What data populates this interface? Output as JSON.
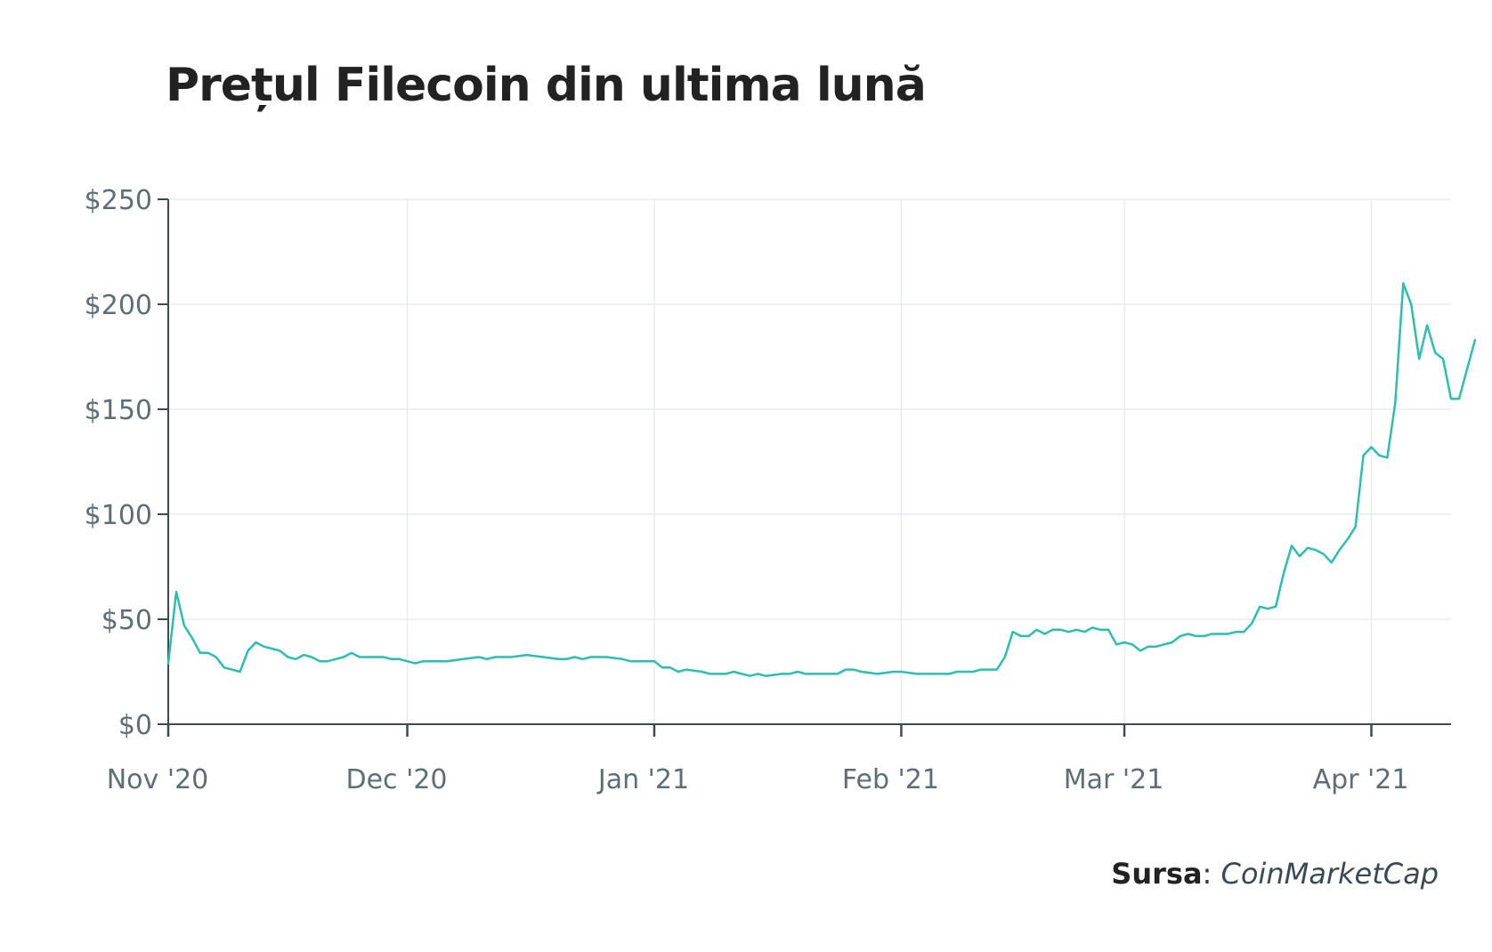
{
  "title": "Prețul Filecoin din ultima lună",
  "source": {
    "label": "Sursa",
    "separator": ": ",
    "name": "CoinMarketCap"
  },
  "colors": {
    "line": "#2bbfb0",
    "axis": "#3c4a52",
    "grid": "#e8ecef",
    "text": "#5e6e78"
  },
  "chart_data": {
    "type": "line",
    "title": "Prețul Filecoin din ultima lună",
    "xlabel": "",
    "ylabel": "",
    "x_tick_labels": [
      "Nov '20",
      "Dec '20",
      "Jan '21",
      "Feb '21",
      "Mar '21",
      "Apr '21"
    ],
    "x_tick_dates": [
      "2020-11-01",
      "2020-12-01",
      "2021-01-01",
      "2021-02-01",
      "2021-03-01",
      "2021-04-01"
    ],
    "xlim": [
      "2020-11-01",
      "2021-04-11"
    ],
    "y_ticks": [
      0,
      50,
      100,
      150,
      200,
      250
    ],
    "y_tick_labels": [
      "$0",
      "$50",
      "$100",
      "$150",
      "$200",
      "$250"
    ],
    "ylim": [
      0,
      250
    ],
    "grid": true,
    "legend": "none",
    "series": [
      {
        "name": "",
        "points": [
          [
            "2020-11-01",
            29
          ],
          [
            "2020-11-02",
            63
          ],
          [
            "2020-11-03",
            47
          ],
          [
            "2020-11-04",
            41
          ],
          [
            "2020-11-05",
            34
          ],
          [
            "2020-11-06",
            34
          ],
          [
            "2020-11-07",
            32
          ],
          [
            "2020-11-08",
            27
          ],
          [
            "2020-11-09",
            26
          ],
          [
            "2020-11-10",
            25
          ],
          [
            "2020-11-11",
            35
          ],
          [
            "2020-11-12",
            39
          ],
          [
            "2020-11-13",
            37
          ],
          [
            "2020-11-14",
            36
          ],
          [
            "2020-11-15",
            35
          ],
          [
            "2020-11-16",
            32
          ],
          [
            "2020-11-17",
            31
          ],
          [
            "2020-11-18",
            33
          ],
          [
            "2020-11-19",
            32
          ],
          [
            "2020-11-20",
            30
          ],
          [
            "2020-11-21",
            30
          ],
          [
            "2020-11-22",
            31
          ],
          [
            "2020-11-23",
            32
          ],
          [
            "2020-11-24",
            34
          ],
          [
            "2020-11-25",
            32
          ],
          [
            "2020-11-26",
            32
          ],
          [
            "2020-11-27",
            32
          ],
          [
            "2020-11-28",
            32
          ],
          [
            "2020-11-29",
            31
          ],
          [
            "2020-11-30",
            31
          ],
          [
            "2020-12-01",
            30
          ],
          [
            "2020-12-02",
            29
          ],
          [
            "2020-12-03",
            30
          ],
          [
            "2020-12-04",
            30
          ],
          [
            "2020-12-06",
            30
          ],
          [
            "2020-12-08",
            31
          ],
          [
            "2020-12-10",
            32
          ],
          [
            "2020-12-11",
            31
          ],
          [
            "2020-12-12",
            32
          ],
          [
            "2020-12-14",
            32
          ],
          [
            "2020-12-16",
            33
          ],
          [
            "2020-12-18",
            32
          ],
          [
            "2020-12-20",
            31
          ],
          [
            "2020-12-21",
            31
          ],
          [
            "2020-12-22",
            32
          ],
          [
            "2020-12-23",
            31
          ],
          [
            "2020-12-24",
            32
          ],
          [
            "2020-12-26",
            32
          ],
          [
            "2020-12-28",
            31
          ],
          [
            "2020-12-29",
            30
          ],
          [
            "2020-12-31",
            30
          ],
          [
            "2021-01-01",
            30
          ],
          [
            "2021-01-02",
            27
          ],
          [
            "2021-01-03",
            27
          ],
          [
            "2021-01-04",
            25
          ],
          [
            "2021-01-05",
            26
          ],
          [
            "2021-01-07",
            25
          ],
          [
            "2021-01-08",
            24
          ],
          [
            "2021-01-10",
            24
          ],
          [
            "2021-01-11",
            25
          ],
          [
            "2021-01-12",
            24
          ],
          [
            "2021-01-13",
            23
          ],
          [
            "2021-01-14",
            24
          ],
          [
            "2021-01-15",
            23
          ],
          [
            "2021-01-17",
            24
          ],
          [
            "2021-01-18",
            24
          ],
          [
            "2021-01-19",
            25
          ],
          [
            "2021-01-20",
            24
          ],
          [
            "2021-01-22",
            24
          ],
          [
            "2021-01-24",
            24
          ],
          [
            "2021-01-25",
            26
          ],
          [
            "2021-01-26",
            26
          ],
          [
            "2021-01-27",
            25
          ],
          [
            "2021-01-29",
            24
          ],
          [
            "2021-01-31",
            25
          ],
          [
            "2021-02-01",
            25
          ],
          [
            "2021-02-03",
            24
          ],
          [
            "2021-02-05",
            24
          ],
          [
            "2021-02-07",
            24
          ],
          [
            "2021-02-08",
            25
          ],
          [
            "2021-02-10",
            25
          ],
          [
            "2021-02-11",
            26
          ],
          [
            "2021-02-13",
            26
          ],
          [
            "2021-02-14",
            32
          ],
          [
            "2021-02-15",
            44
          ],
          [
            "2021-02-16",
            42
          ],
          [
            "2021-02-17",
            42
          ],
          [
            "2021-02-18",
            45
          ],
          [
            "2021-02-19",
            43
          ],
          [
            "2021-02-20",
            45
          ],
          [
            "2021-02-21",
            45
          ],
          [
            "2021-02-22",
            44
          ],
          [
            "2021-02-23",
            45
          ],
          [
            "2021-02-24",
            44
          ],
          [
            "2021-02-25",
            46
          ],
          [
            "2021-02-26",
            45
          ],
          [
            "2021-02-27",
            45
          ],
          [
            "2021-02-28",
            38
          ],
          [
            "2021-03-01",
            39
          ],
          [
            "2021-03-02",
            38
          ],
          [
            "2021-03-03",
            35
          ],
          [
            "2021-03-04",
            37
          ],
          [
            "2021-03-05",
            37
          ],
          [
            "2021-03-06",
            38
          ],
          [
            "2021-03-07",
            39
          ],
          [
            "2021-03-08",
            42
          ],
          [
            "2021-03-09",
            43
          ],
          [
            "2021-03-10",
            42
          ],
          [
            "2021-03-11",
            42
          ],
          [
            "2021-03-12",
            43
          ],
          [
            "2021-03-13",
            43
          ],
          [
            "2021-03-14",
            43
          ],
          [
            "2021-03-15",
            44
          ],
          [
            "2021-03-16",
            44
          ],
          [
            "2021-03-17",
            48
          ],
          [
            "2021-03-18",
            56
          ],
          [
            "2021-03-19",
            55
          ],
          [
            "2021-03-20",
            56
          ],
          [
            "2021-03-21",
            72
          ],
          [
            "2021-03-22",
            85
          ],
          [
            "2021-03-23",
            80
          ],
          [
            "2021-03-24",
            84
          ],
          [
            "2021-03-25",
            83
          ],
          [
            "2021-03-26",
            81
          ],
          [
            "2021-03-27",
            77
          ],
          [
            "2021-03-28",
            83
          ],
          [
            "2021-03-29",
            88
          ],
          [
            "2021-03-30",
            94
          ],
          [
            "2021-03-31",
            128
          ],
          [
            "2021-04-01",
            132
          ],
          [
            "2021-04-02",
            128
          ],
          [
            "2021-04-03",
            127
          ],
          [
            "2021-04-04",
            153
          ],
          [
            "2021-04-05",
            210
          ],
          [
            "2021-04-06",
            200
          ],
          [
            "2021-04-07",
            174
          ],
          [
            "2021-04-08",
            190
          ],
          [
            "2021-04-09",
            177
          ],
          [
            "2021-04-10",
            174
          ],
          [
            "2021-04-11",
            155
          ],
          [
            "2021-04-12",
            155
          ],
          [
            "2021-04-14",
            183
          ]
        ]
      }
    ]
  }
}
